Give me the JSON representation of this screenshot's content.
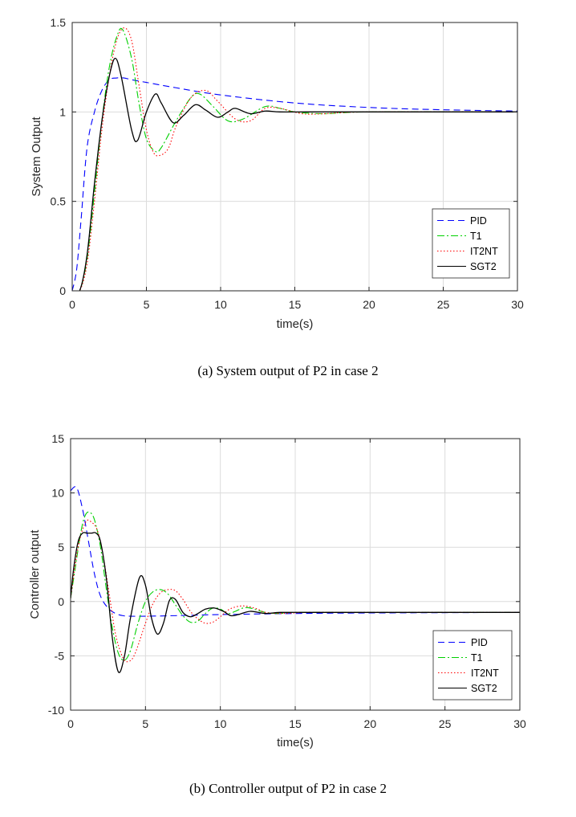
{
  "series_styles": [
    {
      "name": "PID",
      "color": "#0000ff",
      "dash": "8 5"
    },
    {
      "name": "T1",
      "color": "#00d000",
      "dash": "9 3 2 3"
    },
    {
      "name": "IT2NT",
      "color": "#ff0000",
      "dash": "1.5 2.5"
    },
    {
      "name": "SGT2",
      "color": "#000000",
      "dash": ""
    }
  ],
  "chart_data": [
    {
      "type": "line",
      "caption": "(a) System output of P2 in case 2",
      "xlabel": "time(s)",
      "ylabel": "System Output",
      "xlim": [
        0,
        30
      ],
      "ylim": [
        0,
        1.5
      ],
      "xticks": [
        0,
        5,
        10,
        15,
        20,
        25,
        30
      ],
      "xtick_labels": [
        "0",
        "5",
        "10",
        "15",
        "20",
        "25",
        "30"
      ],
      "yticks": [
        0,
        0.5,
        1,
        1.5
      ],
      "ytick_labels": [
        "0",
        "0.5",
        "1",
        "1.5"
      ],
      "grid": true,
      "legend": "bottom-right",
      "series": [
        {
          "name": "PID",
          "x": [
            0,
            0.3,
            0.6,
            1,
            1.5,
            2,
            2.5,
            3,
            3.5,
            4,
            5,
            7,
            10,
            15,
            20,
            25,
            30
          ],
          "values": [
            0,
            0.12,
            0.4,
            0.8,
            1.0,
            1.12,
            1.18,
            1.19,
            1.19,
            1.18,
            1.165,
            1.135,
            1.095,
            1.05,
            1.025,
            1.012,
            1.005
          ]
        },
        {
          "name": "T1",
          "x": [
            0,
            0.5,
            1,
            1.5,
            2,
            2.5,
            3,
            3.4,
            4,
            4.5,
            5,
            5.6,
            6,
            7,
            8,
            8.6,
            9.5,
            10.5,
            11.5,
            13,
            14,
            15,
            17,
            20,
            30
          ],
          "values": [
            0,
            0.0,
            0.18,
            0.55,
            0.95,
            1.25,
            1.42,
            1.46,
            1.3,
            1.05,
            0.85,
            0.78,
            0.8,
            0.95,
            1.08,
            1.1,
            1.03,
            0.95,
            0.96,
            1.03,
            1.02,
            1.0,
            0.99,
            1.0,
            1.0
          ]
        },
        {
          "name": "IT2NT",
          "x": [
            0,
            0.5,
            1,
            1.5,
            2,
            2.5,
            3,
            3.5,
            4,
            4.5,
            5,
            5.5,
            6,
            6.5,
            7,
            8,
            9,
            9.8,
            11,
            12,
            13,
            14,
            15.5,
            17,
            20,
            30
          ],
          "values": [
            0,
            0.0,
            0.15,
            0.5,
            0.9,
            1.2,
            1.4,
            1.47,
            1.4,
            1.15,
            0.9,
            0.77,
            0.76,
            0.8,
            0.92,
            1.08,
            1.12,
            1.06,
            0.96,
            0.95,
            1.02,
            1.02,
            0.99,
            0.99,
            1.0,
            1.0
          ]
        },
        {
          "name": "SGT2",
          "x": [
            0,
            0.5,
            1,
            1.5,
            2,
            2.5,
            2.9,
            3.3,
            4,
            4.4,
            5,
            5.6,
            6,
            6.8,
            7.5,
            8.3,
            9,
            9.8,
            10.5,
            11,
            12,
            13,
            14,
            16,
            20,
            30
          ],
          "values": [
            0,
            0.0,
            0.2,
            0.6,
            0.95,
            1.2,
            1.3,
            1.2,
            0.9,
            0.84,
            1.0,
            1.1,
            1.05,
            0.94,
            0.98,
            1.04,
            1.01,
            0.97,
            1.0,
            1.02,
            0.99,
            1.005,
            1.0,
            1.0,
            1.0,
            1.0
          ]
        }
      ]
    },
    {
      "type": "line",
      "caption": "(b) Controller output of P2 in case 2",
      "xlabel": "time(s)",
      "ylabel": "Controller output",
      "xlim": [
        0,
        30
      ],
      "ylim": [
        -10,
        15
      ],
      "xticks": [
        0,
        5,
        10,
        15,
        20,
        25,
        30
      ],
      "xtick_labels": [
        "0",
        "5",
        "10",
        "15",
        "20",
        "25",
        "30"
      ],
      "yticks": [
        -10,
        -5,
        0,
        5,
        10,
        15
      ],
      "ytick_labels": [
        "-10",
        "-5",
        "0",
        "5",
        "10",
        "15"
      ],
      "grid": true,
      "legend": "bottom-right",
      "series": [
        {
          "name": "PID",
          "x": [
            0,
            0.4,
            0.8,
            1.2,
            1.6,
            2,
            2.5,
            3,
            3.5,
            4,
            5,
            7,
            10,
            15,
            20,
            30
          ],
          "values": [
            10.2,
            10.5,
            8.5,
            5.5,
            2.5,
            0.5,
            -0.6,
            -1.1,
            -1.3,
            -1.35,
            -1.35,
            -1.3,
            -1.2,
            -1.1,
            -1.05,
            -1.0
          ]
        },
        {
          "name": "T1",
          "x": [
            0,
            0.3,
            0.7,
            1,
            1.3,
            1.6,
            2,
            2.4,
            2.8,
            3.2,
            3.6,
            4,
            4.5,
            5,
            5.5,
            6,
            6.5,
            7,
            7.5,
            8,
            8.5,
            9,
            9.5,
            10,
            10.5,
            11,
            11.5,
            12,
            13,
            14,
            15,
            20,
            30
          ],
          "values": [
            0.3,
            3,
            6.5,
            8.0,
            8.2,
            7.5,
            5,
            1,
            -2.5,
            -4.8,
            -5.4,
            -4.5,
            -2,
            0,
            0.9,
            1.1,
            0.7,
            -0.3,
            -1.3,
            -1.9,
            -1.8,
            -1.1,
            -0.6,
            -0.7,
            -1.1,
            -0.9,
            -0.6,
            -0.6,
            -1.0,
            -1.1,
            -1.0,
            -1.0,
            -1.0
          ]
        },
        {
          "name": "IT2NT",
          "x": [
            0,
            0.5,
            1,
            1.4,
            1.8,
            2.2,
            2.6,
            3,
            3.5,
            3.9,
            4.3,
            5,
            5.5,
            6,
            6.5,
            7,
            7.5,
            8,
            8.5,
            9,
            9.5,
            10,
            10.5,
            11,
            11.5,
            12,
            12.5,
            13,
            14,
            16,
            20,
            30
          ],
          "values": [
            0.3,
            5,
            7.3,
            7.3,
            6.5,
            4,
            0.5,
            -3,
            -5.2,
            -5.5,
            -4.8,
            -2,
            -0.2,
            0.8,
            1.1,
            1.0,
            0.2,
            -0.9,
            -1.6,
            -2.0,
            -1.9,
            -1.4,
            -0.8,
            -0.5,
            -0.4,
            -0.5,
            -0.7,
            -1.0,
            -1.1,
            -1.0,
            -1.0,
            -1.0
          ]
        },
        {
          "name": "SGT2",
          "x": [
            0,
            0.2,
            0.5,
            0.8,
            1.1,
            1.4,
            1.7,
            2,
            2.4,
            2.8,
            3.2,
            3.6,
            4,
            4.6,
            5,
            5.4,
            5.8,
            6.2,
            6.6,
            7,
            7.5,
            8,
            8.5,
            9,
            9.6,
            10.2,
            10.7,
            11.2,
            12,
            13,
            14,
            16,
            20,
            30
          ],
          "values": [
            0.3,
            3,
            5.5,
            6.3,
            6.3,
            6.3,
            6.3,
            5.5,
            2,
            -3.5,
            -6.5,
            -5,
            -1.5,
            2.2,
            1.5,
            -1.5,
            -3.0,
            -2.0,
            0.1,
            0.2,
            -1.0,
            -1.4,
            -1.1,
            -0.7,
            -0.6,
            -0.9,
            -1.3,
            -1.2,
            -0.9,
            -1.1,
            -1.0,
            -1.0,
            -1.0,
            -1.0
          ]
        }
      ]
    }
  ]
}
